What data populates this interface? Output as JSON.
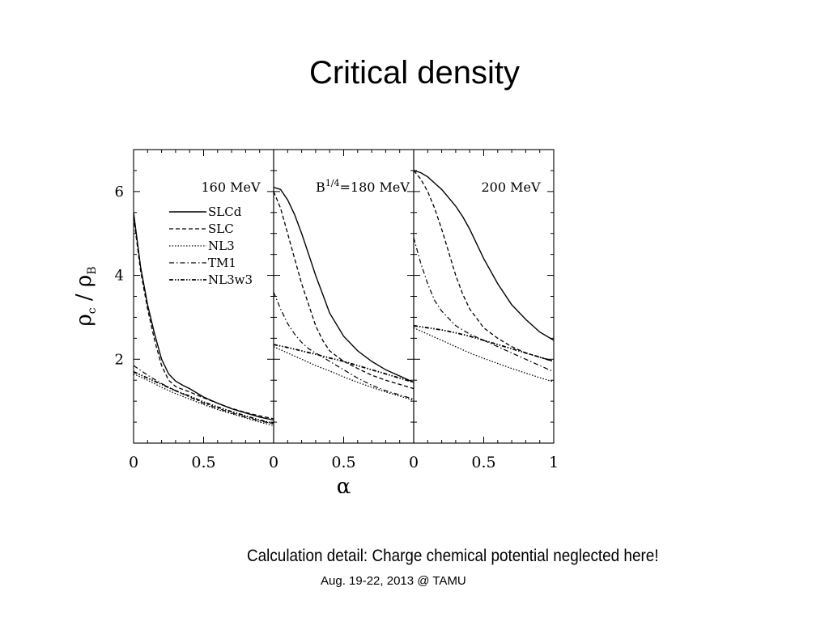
{
  "slide": {
    "title": "Critical density",
    "caption": "Calculation detail: Charge chemical potential neglected here!",
    "footer": "Aug. 19-22, 2013 @ TAMU"
  },
  "chart_data": {
    "type": "line",
    "ylabel": "ρc / ρB",
    "xlabel": "α",
    "ylim": [
      0,
      7
    ],
    "xlim": [
      0,
      1
    ],
    "grid": false,
    "legend_position": "upper-right of first panel",
    "styles": {
      "SLCd": "solid",
      "SLC": "dashed",
      "NL3": "dotted",
      "TM1": "dash-dot",
      "NL3w3": "dash-dot-dot"
    },
    "panels": [
      {
        "label": "160 MeV",
        "x_ticks": [
          "0",
          "0.5",
          ""
        ],
        "series": [
          {
            "name": "SLCd",
            "x": [
              0,
              0.05,
              0.1,
              0.15,
              0.2,
              0.25,
              0.3,
              0.35,
              0.4,
              0.5,
              0.6,
              0.7,
              0.8,
              0.9,
              1.0
            ],
            "y": [
              5.5,
              4.2,
              3.3,
              2.6,
              2.0,
              1.65,
              1.48,
              1.38,
              1.3,
              1.1,
              0.95,
              0.82,
              0.72,
              0.62,
              0.55
            ]
          },
          {
            "name": "SLC",
            "x": [
              0,
              0.05,
              0.1,
              0.15,
              0.2,
              0.25,
              0.3,
              0.35,
              0.4,
              0.5,
              0.6,
              0.7,
              0.8,
              0.9,
              1.0
            ],
            "y": [
              5.4,
              4.1,
              3.2,
              2.45,
              1.85,
              1.5,
              1.35,
              1.28,
              1.22,
              1.08,
              0.95,
              0.83,
              0.73,
              0.65,
              0.58
            ]
          },
          {
            "name": "NL3",
            "x": [
              0,
              0.1,
              0.2,
              0.3,
              0.4,
              0.5,
              0.6,
              0.7,
              0.8,
              0.9,
              1.0
            ],
            "y": [
              1.65,
              1.5,
              1.33,
              1.18,
              1.05,
              0.92,
              0.8,
              0.7,
              0.6,
              0.5,
              0.42
            ]
          },
          {
            "name": "TM1",
            "x": [
              0,
              0.1,
              0.2,
              0.3,
              0.4,
              0.5,
              0.6,
              0.7,
              0.8,
              0.9,
              1.0
            ],
            "y": [
              1.85,
              1.62,
              1.42,
              1.25,
              1.1,
              0.95,
              0.83,
              0.72,
              0.62,
              0.53,
              0.46
            ]
          },
          {
            "name": "NL3w3",
            "x": [
              0,
              0.1,
              0.2,
              0.3,
              0.4,
              0.5,
              0.6,
              0.7,
              0.8,
              0.9,
              1.0
            ],
            "y": [
              1.7,
              1.55,
              1.4,
              1.25,
              1.12,
              0.98,
              0.86,
              0.75,
              0.65,
              0.55,
              0.47
            ]
          }
        ]
      },
      {
        "label": "B1/4=180 MeV",
        "x_ticks": [
          "0",
          "0.5",
          ""
        ],
        "series": [
          {
            "name": "SLCd",
            "x": [
              0,
              0.05,
              0.1,
              0.15,
              0.2,
              0.25,
              0.3,
              0.35,
              0.4,
              0.5,
              0.6,
              0.7,
              0.8,
              0.9,
              1.0
            ],
            "y": [
              6.1,
              6.05,
              5.8,
              5.45,
              5.0,
              4.5,
              4.0,
              3.55,
              3.1,
              2.55,
              2.2,
              1.95,
              1.75,
              1.6,
              1.45
            ]
          },
          {
            "name": "SLC",
            "x": [
              0,
              0.05,
              0.1,
              0.15,
              0.2,
              0.25,
              0.3,
              0.35,
              0.4,
              0.5,
              0.6,
              0.7,
              0.8,
              0.9,
              1.0
            ],
            "y": [
              6.0,
              5.6,
              5.0,
              4.4,
              3.8,
              3.3,
              2.8,
              2.45,
              2.2,
              1.95,
              1.78,
              1.62,
              1.5,
              1.4,
              1.3
            ]
          },
          {
            "name": "NL3",
            "x": [
              0,
              0.1,
              0.2,
              0.3,
              0.4,
              0.5,
              0.6,
              0.7,
              0.8,
              0.9,
              1.0
            ],
            "y": [
              2.3,
              2.15,
              2.0,
              1.85,
              1.72,
              1.58,
              1.45,
              1.33,
              1.22,
              1.12,
              1.02
            ]
          },
          {
            "name": "TM1",
            "x": [
              0,
              0.05,
              0.1,
              0.15,
              0.2,
              0.25,
              0.3,
              0.4,
              0.5,
              0.6,
              0.7,
              0.8,
              0.9,
              1.0
            ],
            "y": [
              3.6,
              3.2,
              2.85,
              2.6,
              2.4,
              2.25,
              2.15,
              1.95,
              1.75,
              1.55,
              1.38,
              1.25,
              1.15,
              1.05
            ]
          },
          {
            "name": "NL3w3",
            "x": [
              0,
              0.1,
              0.2,
              0.3,
              0.4,
              0.5,
              0.6,
              0.7,
              0.8,
              0.9,
              1.0
            ],
            "y": [
              2.35,
              2.28,
              2.2,
              2.12,
              2.03,
              1.95,
              1.85,
              1.75,
              1.65,
              1.55,
              1.45
            ]
          }
        ]
      },
      {
        "label": "200 MeV",
        "x_ticks": [
          "0",
          "0.5",
          "1"
        ],
        "series": [
          {
            "name": "SLCd",
            "x": [
              0,
              0.05,
              0.1,
              0.15,
              0.2,
              0.25,
              0.3,
              0.35,
              0.4,
              0.5,
              0.6,
              0.7,
              0.8,
              0.9,
              1.0
            ],
            "y": [
              6.5,
              6.45,
              6.35,
              6.2,
              6.05,
              5.85,
              5.65,
              5.4,
              5.1,
              4.4,
              3.8,
              3.3,
              2.95,
              2.65,
              2.45
            ]
          },
          {
            "name": "SLC",
            "x": [
              0,
              0.05,
              0.1,
              0.15,
              0.2,
              0.25,
              0.3,
              0.35,
              0.4,
              0.5,
              0.6,
              0.7,
              0.8,
              0.9,
              1.0
            ],
            "y": [
              6.5,
              6.3,
              6.0,
              5.6,
              5.1,
              4.55,
              4.0,
              3.55,
              3.2,
              2.75,
              2.5,
              2.3,
              2.15,
              2.05,
              1.95
            ]
          },
          {
            "name": "NL3",
            "x": [
              0,
              0.1,
              0.2,
              0.3,
              0.4,
              0.5,
              0.6,
              0.7,
              0.8,
              0.9,
              1.0
            ],
            "y": [
              2.75,
              2.6,
              2.45,
              2.3,
              2.15,
              2.02,
              1.9,
              1.78,
              1.67,
              1.56,
              1.46
            ]
          },
          {
            "name": "TM1",
            "x": [
              0,
              0.05,
              0.1,
              0.15,
              0.2,
              0.3,
              0.4,
              0.5,
              0.6,
              0.7,
              0.8,
              0.9,
              1.0
            ],
            "y": [
              4.9,
              4.3,
              3.8,
              3.4,
              3.15,
              2.8,
              2.6,
              2.45,
              2.3,
              2.15,
              2.0,
              1.85,
              1.7
            ]
          },
          {
            "name": "NL3w3",
            "x": [
              0,
              0.1,
              0.2,
              0.3,
              0.4,
              0.5,
              0.6,
              0.7,
              0.8,
              0.9,
              1.0
            ],
            "y": [
              2.8,
              2.75,
              2.7,
              2.63,
              2.55,
              2.45,
              2.35,
              2.25,
              2.15,
              2.05,
              1.95
            ]
          }
        ]
      }
    ],
    "y_ticks": [
      {
        "value": 2,
        "label": "2"
      },
      {
        "value": 4,
        "label": "4"
      },
      {
        "value": 6,
        "label": "6"
      }
    ],
    "legend": [
      "SLCd",
      "SLC",
      "NL3",
      "TM1",
      "NL3w3"
    ]
  }
}
